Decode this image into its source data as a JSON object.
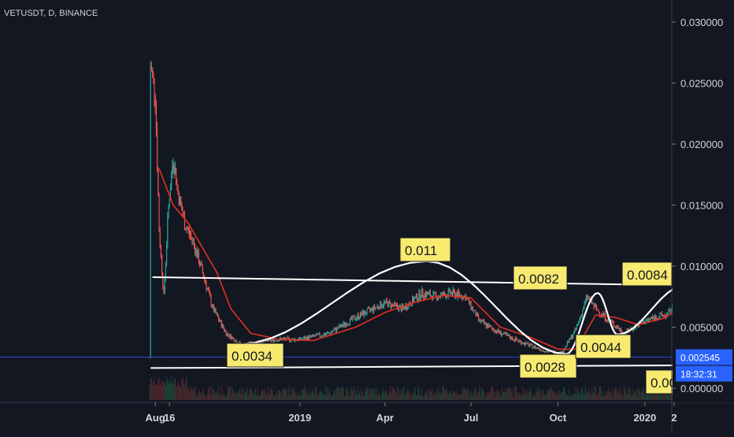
{
  "chart_data": {
    "type": "candlestick",
    "title": "VETUSDT, D, BINANCE",
    "x_tick_labels": [
      "Aug",
      "16",
      "2019",
      "Apr",
      "Jul",
      "Oct",
      "2020",
      "2"
    ],
    "y_tick_labels": [
      "0.030000",
      "0.025000",
      "0.020000",
      "0.015000",
      "0.010000",
      "0.005000",
      "0.000000"
    ],
    "ylim": [
      0,
      0.0315
    ],
    "current_price": "0.002545",
    "countdown": "18:32:31",
    "annotations": [
      "0.011",
      "0.0082",
      "0.0084",
      "0.0034",
      "0.0028",
      "0.0044",
      "0.00"
    ],
    "series": [
      {
        "name": "VETUSDT",
        "x": [
          "2018-07-27",
          "2018-08-01",
          "2018-08-05",
          "2018-08-10",
          "2018-08-15",
          "2018-08-20",
          "2018-08-25",
          "2018-09-01",
          "2018-09-10",
          "2018-09-20",
          "2018-10-01",
          "2018-10-15",
          "2018-11-01",
          "2018-11-20",
          "2018-12-10",
          "2019-01-01",
          "2019-02-01",
          "2019-03-01",
          "2019-04-01",
          "2019-04-20",
          "2019-05-10",
          "2019-05-25",
          "2019-06-10",
          "2019-06-25",
          "2019-07-10",
          "2019-07-25",
          "2019-08-10",
          "2019-09-01",
          "2019-09-20",
          "2019-10-05",
          "2019-10-20",
          "2019-11-01",
          "2019-11-10",
          "2019-11-25",
          "2019-12-10",
          "2019-12-25",
          "2020-01-10",
          "2020-01-25",
          "2020-02-10",
          "2020-02-20",
          "2020-03-01",
          "2020-03-12",
          "2020-03-20"
        ],
        "values": [
          0.0265,
          0.024,
          0.013,
          0.0075,
          0.015,
          0.019,
          0.016,
          0.0135,
          0.012,
          0.0095,
          0.0065,
          0.0045,
          0.0035,
          0.0038,
          0.004,
          0.004,
          0.0045,
          0.0058,
          0.007,
          0.0065,
          0.0078,
          0.0075,
          0.0078,
          0.0075,
          0.0055,
          0.0048,
          0.0042,
          0.0035,
          0.003,
          0.0029,
          0.0048,
          0.0075,
          0.0065,
          0.0055,
          0.0045,
          0.0052,
          0.0058,
          0.006,
          0.0078,
          0.0068,
          0.006,
          0.0035,
          0.0025
        ]
      }
    ],
    "moving_average": {
      "x": [
        "2018-08-05",
        "2018-08-20",
        "2018-09-05",
        "2018-09-20",
        "2018-10-05",
        "2018-10-20",
        "2018-11-10",
        "2018-12-10",
        "2019-01-15",
        "2019-03-01",
        "2019-04-01",
        "2019-05-01",
        "2019-06-01",
        "2019-07-01",
        "2019-08-01",
        "2019-09-01",
        "2019-10-01",
        "2019-10-20",
        "2019-11-10",
        "2019-12-01",
        "2019-12-25",
        "2020-01-20",
        "2020-02-15",
        "2020-03-01",
        "2020-03-15"
      ],
      "values": [
        0.018,
        0.015,
        0.0135,
        0.0115,
        0.0095,
        0.0065,
        0.0045,
        0.004,
        0.0039,
        0.005,
        0.0062,
        0.007,
        0.0076,
        0.0074,
        0.005,
        0.0042,
        0.0032,
        0.0032,
        0.006,
        0.0058,
        0.0052,
        0.0057,
        0.0068,
        0.0065,
        0.0045
      ]
    },
    "trendlines": [
      {
        "x": [
          "2018-07-29",
          "2020-03-01"
        ],
        "y": [
          0.0091,
          0.0084
        ]
      },
      {
        "x": [
          "2018-07-27",
          "2020-03-01"
        ],
        "y": [
          0.00165,
          0.00188
        ]
      }
    ],
    "pattern": {
      "x": [
        "2018-10-28",
        "2019-05-15",
        "2019-10-10",
        "2019-11-12",
        "2019-12-03",
        "2020-02-12",
        "2020-03-12"
      ],
      "y": [
        0.0036,
        0.0104,
        0.0028,
        0.0078,
        0.0044,
        0.0084,
        0.0031
      ]
    },
    "colors": {
      "up": "#26a69a",
      "down": "#ef5350",
      "moving_average": "#e0311f",
      "pattern": "#ffffff",
      "annotation": "#f7ea6f",
      "current_price": "#2962ff"
    },
    "grid": false
  }
}
